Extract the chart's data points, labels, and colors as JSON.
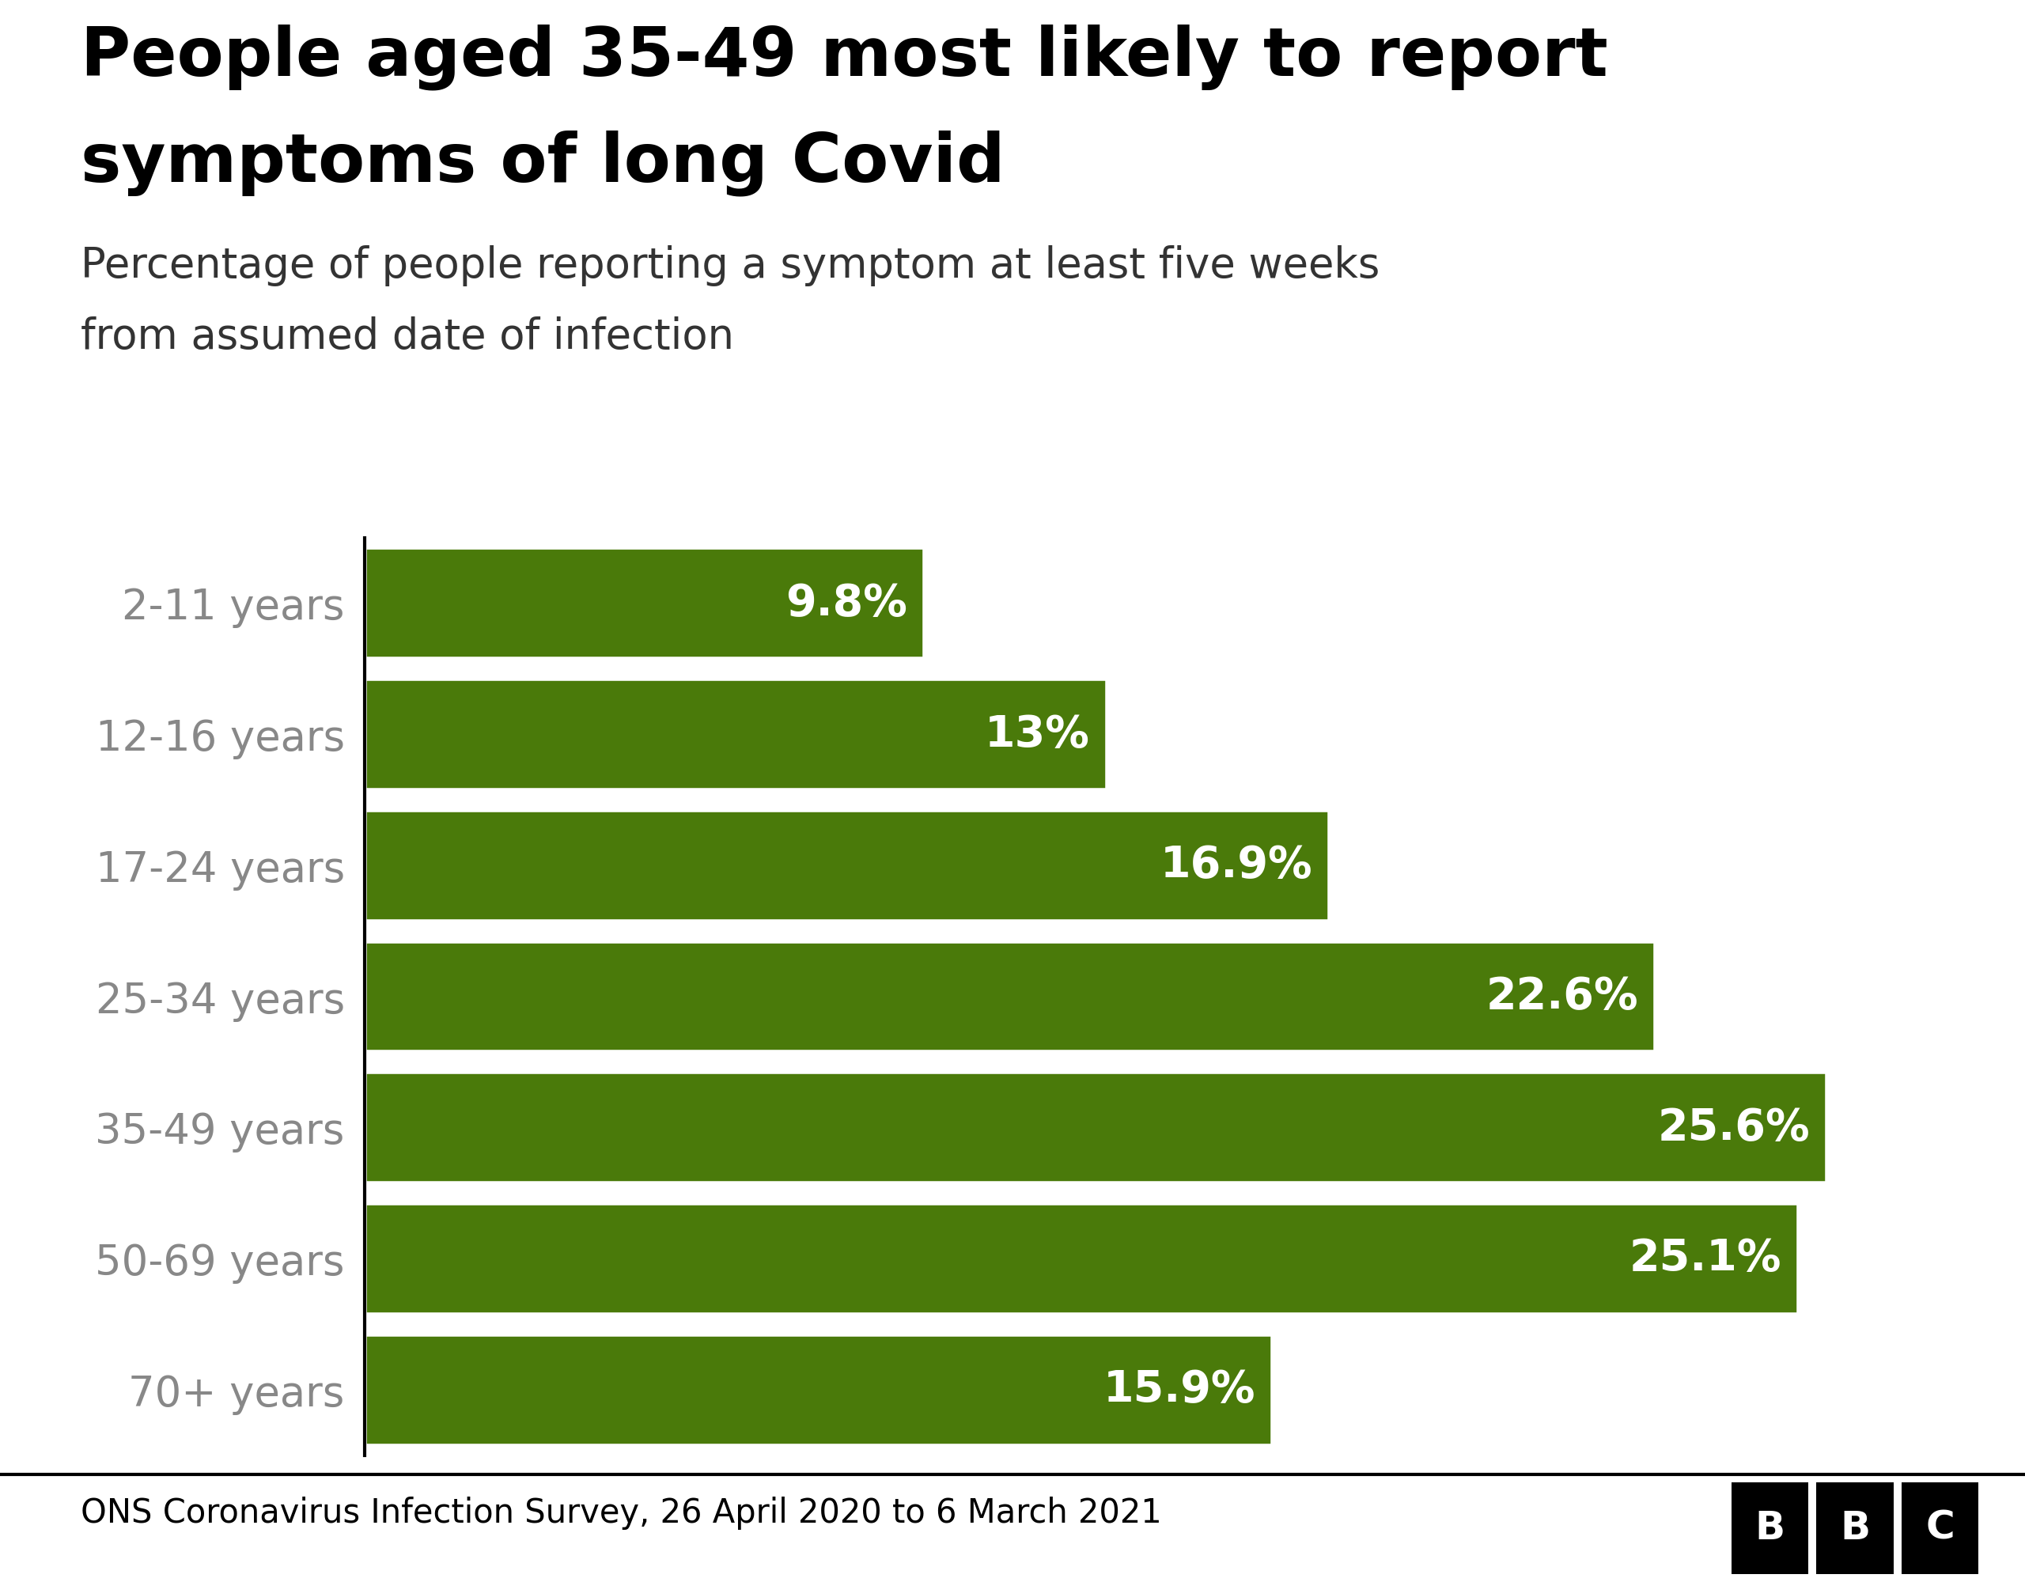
{
  "title_line1": "People aged 35-49 most likely to report",
  "title_line2": "symptoms of long Covid",
  "subtitle_line1": "Percentage of people reporting a symptom at least five weeks",
  "subtitle_line2": "from assumed date of infection",
  "categories": [
    "2-11 years",
    "12-16 years",
    "17-24 years",
    "25-34 years",
    "35-49 years",
    "50-69 years",
    "70+ years"
  ],
  "values": [
    9.8,
    13.0,
    16.9,
    22.6,
    25.6,
    25.1,
    15.9
  ],
  "labels": [
    "9.8%",
    "13%",
    "16.9%",
    "22.6%",
    "25.6%",
    "25.1%",
    "15.9%"
  ],
  "bar_color": "#4a7a0a",
  "label_color": "#ffffff",
  "title_color": "#000000",
  "subtitle_color": "#333333",
  "category_color": "#888888",
  "footer_text": "ONS Coronavirus Infection Survey, 26 April 2020 to 6 March 2021",
  "footer_color": "#000000",
  "background_color": "#ffffff",
  "xlim": [
    0,
    28
  ],
  "title_fontsize": 62,
  "subtitle_fontsize": 38,
  "category_fontsize": 38,
  "label_fontsize": 40,
  "footer_fontsize": 30,
  "bbc_fontsize": 36
}
